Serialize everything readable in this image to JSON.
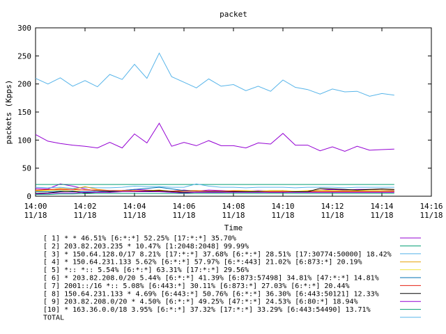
{
  "chart_data": {
    "type": "line",
    "title": "packet",
    "xlabel": "Time",
    "ylabel": "packets (Kpps)",
    "ylim": [
      0,
      300
    ],
    "y_ticks": [
      "0",
      "50",
      "100",
      "150",
      "200",
      "250",
      "300"
    ],
    "x_ticks": [
      {
        "time": "14:00",
        "date": "11/18"
      },
      {
        "time": "14:02",
        "date": "11/18"
      },
      {
        "time": "14:04",
        "date": "11/18"
      },
      {
        "time": "14:06",
        "date": "11/18"
      },
      {
        "time": "14:08",
        "date": "11/18"
      },
      {
        "time": "14:10",
        "date": "11/18"
      },
      {
        "time": "14:12",
        "date": "11/18"
      },
      {
        "time": "14:14",
        "date": "11/18"
      },
      {
        "time": "14:16",
        "date": "11/18"
      }
    ],
    "x": [
      "14:00:00",
      "14:00:30",
      "14:01:00",
      "14:01:30",
      "14:02:00",
      "14:02:30",
      "14:03:00",
      "14:03:30",
      "14:04:00",
      "14:04:30",
      "14:05:00",
      "14:05:30",
      "14:06:00",
      "14:06:30",
      "14:07:00",
      "14:07:30",
      "14:08:00",
      "14:08:30",
      "14:09:00",
      "14:09:30",
      "14:10:00",
      "14:10:30",
      "14:11:00",
      "14:11:30",
      "14:12:00",
      "14:12:30",
      "14:13:00",
      "14:13:30",
      "14:14:00",
      "14:14:30"
    ],
    "grid": false,
    "legend_position": "bottom",
    "series": [
      {
        "label": "[ 1] * * 46.51%  [6:*:*] 52.25% [17:*:*] 35.70%",
        "color": "#9400d3",
        "values": [
          14,
          13,
          22,
          18,
          13,
          9,
          7,
          10,
          12,
          11,
          10,
          9,
          11,
          9,
          11,
          10,
          9,
          9,
          10,
          9,
          10,
          8,
          9,
          11,
          12,
          11,
          12,
          12,
          11,
          10
        ]
      },
      {
        "label": "[ 2] 203.82.203.235 * 10.47%  [1:2048:2048] 99.99%",
        "color": "#009e73",
        "values": [
          21,
          21,
          21,
          21,
          21,
          21,
          21,
          21,
          21,
          21,
          21,
          21,
          21,
          21,
          21,
          21,
          21,
          21,
          21,
          21,
          21,
          21,
          21,
          21,
          21,
          21,
          21,
          21,
          21,
          21
        ]
      },
      {
        "label": "[ 3] * 150.64.128.0/17 8.21%  [17:*:*] 37.68% [6:*:*] 28.51% [17:30774:50000] 18.42%",
        "color": "#56b4e9",
        "values": [
          16,
          15,
          16,
          14,
          16,
          15,
          15,
          16,
          18,
          17,
          17,
          16,
          16,
          22,
          18,
          16,
          16,
          15,
          16,
          16,
          16,
          15,
          16,
          16,
          16,
          15,
          16,
          16,
          16,
          16
        ]
      },
      {
        "label": "[ 4] * 150.64.231.133 5.62%  [6:*:*] 57.97% [6:*:443] 21.02% [6:873:*] 20.19%",
        "color": "#e69f00",
        "values": [
          10,
          11,
          14,
          12,
          17,
          12,
          10,
          10,
          9,
          10,
          11,
          9,
          10,
          10,
          9,
          9,
          10,
          10,
          9,
          10,
          10,
          9,
          10,
          11,
          10,
          10,
          10,
          11,
          11,
          11
        ]
      },
      {
        "label": "[ 5] *:: *:: 5.54%  [6:*:*] 63.31% [17:*:*] 29.56%",
        "color": "#f0e442",
        "values": [
          9,
          10,
          11,
          9,
          12,
          10,
          9,
          9,
          10,
          9,
          10,
          9,
          9,
          9,
          9,
          9,
          9,
          9,
          9,
          9,
          9,
          9,
          9,
          9,
          9,
          9,
          9,
          9,
          9,
          9
        ]
      },
      {
        "label": "[ 6] * 203.82.208.0/20 5.44%  [6:*:*] 41.39% [6:873:57498] 34.81% [47:*:*] 14.81%",
        "color": "#0072b2",
        "values": [
          8,
          8,
          9,
          8,
          8,
          9,
          9,
          10,
          12,
          14,
          16,
          13,
          10,
          9,
          8,
          8,
          8,
          8,
          8,
          8,
          8,
          8,
          8,
          8,
          8,
          8,
          8,
          8,
          8,
          8
        ]
      },
      {
        "label": "[ 7] 2001::/16 *:: 5.08%  [6:443:*] 30.11% [6:873:*] 27.03% [6:*:*] 20.44%",
        "color": "#e51e10",
        "values": [
          11,
          12,
          12,
          12,
          11,
          11,
          10,
          10,
          10,
          9,
          9,
          9,
          9,
          9,
          9,
          9,
          9,
          8,
          8,
          8,
          8,
          8,
          8,
          8,
          8,
          8,
          8,
          8,
          8,
          8
        ]
      },
      {
        "label": "[ 8] 150.64.231.133 * 4.69%  [6:443:*] 50.76% [6:*:*] 36.30% [6:443:50121] 12.33%",
        "color": "#000000",
        "values": [
          5,
          6,
          8,
          9,
          6,
          7,
          8,
          8,
          8,
          9,
          10,
          8,
          7,
          7,
          7,
          7,
          8,
          8,
          8,
          7,
          7,
          8,
          8,
          14,
          13,
          12,
          11,
          12,
          13,
          12
        ]
      },
      {
        "label": "[ 9] 203.82.208.0/20 * 4.50%  [6:*:*] 49.25% [47:*:*] 24.53% [6:80:*] 18.94%",
        "color": "#9400d3",
        "values": [
          4,
          5,
          6,
          6,
          7,
          7,
          7,
          8,
          8,
          8,
          8,
          7,
          6,
          7,
          7,
          7,
          7,
          7,
          7,
          7,
          7,
          7,
          7,
          7,
          7,
          7,
          7,
          7,
          7,
          7
        ]
      },
      {
        "label": "[10] * 163.36.0.0/18 3.95%  [6:*:*] 37.32% [17:*:*] 33.29% [6:443:54490] 13.71%",
        "color": "#009e73",
        "values": [
          3,
          3,
          4,
          4,
          5,
          5,
          5,
          5,
          5,
          5,
          5,
          5,
          5,
          5,
          5,
          5,
          5,
          5,
          5,
          5,
          5,
          5,
          5,
          5,
          5,
          5,
          5,
          5,
          5,
          5
        ]
      },
      {
        "label": "TOTAL",
        "color": "#56b4e9",
        "values": [
          210,
          200,
          211,
          196,
          206,
          195,
          217,
          208,
          235,
          210,
          255,
          213,
          203,
          193,
          209,
          196,
          199,
          188,
          196,
          187,
          207,
          194,
          190,
          182,
          191,
          186,
          187,
          178,
          183,
          180
        ]
      },
      {
        "label": "",
        "color": "#9400d3",
        "values": [
          110,
          98,
          94,
          91,
          89,
          86,
          96,
          86,
          111,
          95,
          130,
          89,
          96,
          90,
          99,
          90,
          90,
          86,
          95,
          93,
          112,
          91,
          91,
          81,
          88,
          80,
          89,
          82,
          83,
          84
        ]
      }
    ]
  }
}
